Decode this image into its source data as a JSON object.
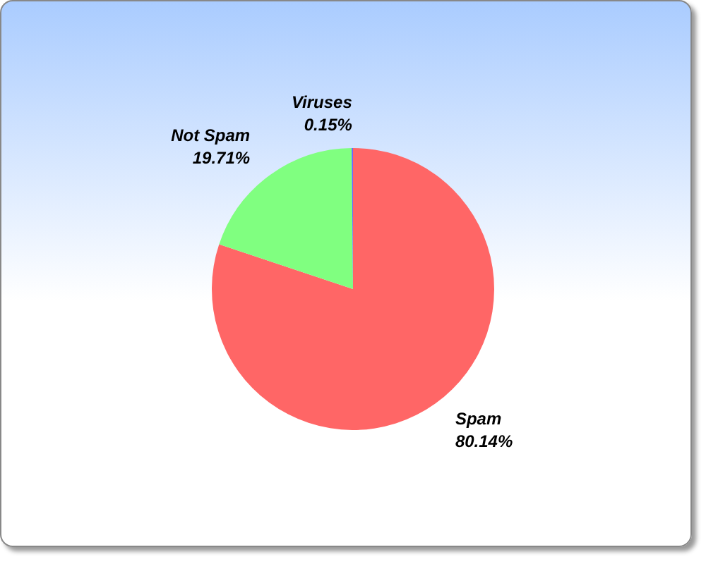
{
  "chart_data": {
    "type": "pie",
    "categories": [
      "Spam",
      "Not Spam",
      "Viruses"
    ],
    "values": [
      80.14,
      19.71,
      0.15
    ],
    "colors": [
      "#ff6666",
      "#80ff80",
      "#6666ff"
    ],
    "value_labels": [
      "80.14%",
      "19.71%",
      "0.15%"
    ],
    "legend": false
  }
}
